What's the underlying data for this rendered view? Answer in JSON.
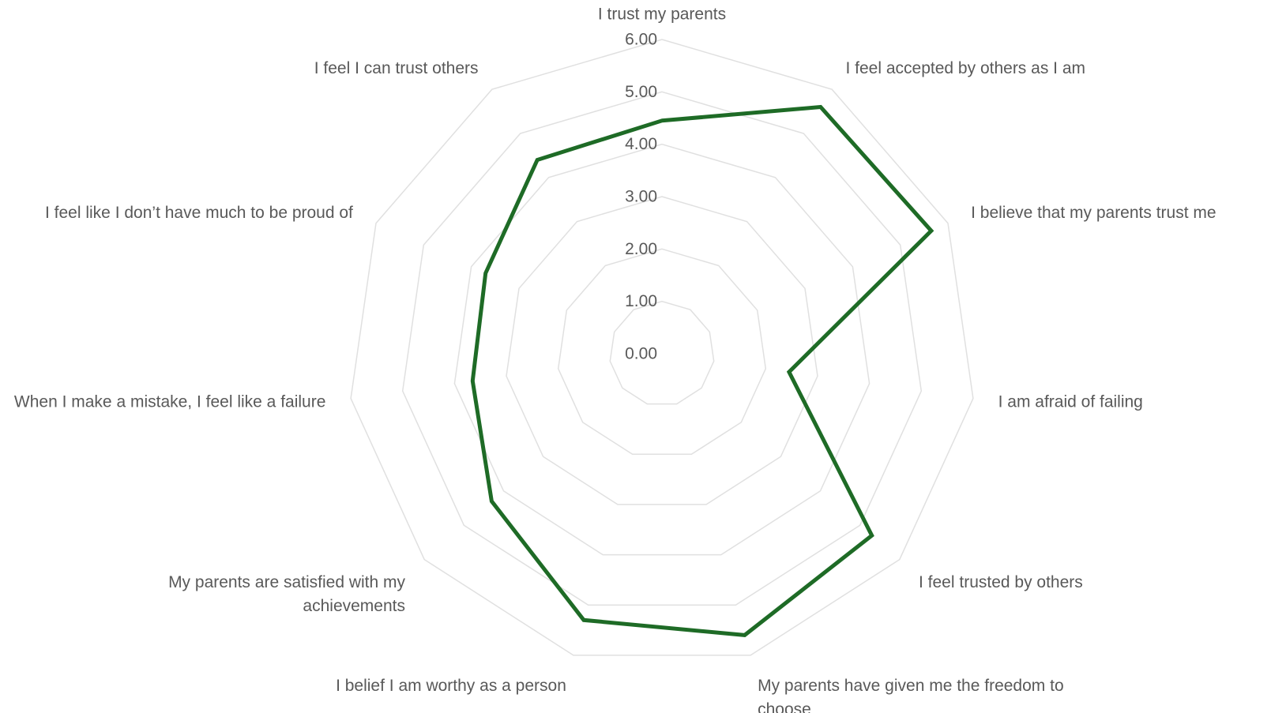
{
  "chart_data": {
    "type": "radar",
    "axes": [
      [
        "I trust my parents"
      ],
      [
        "I feel accepted by others as I am"
      ],
      [
        "I believe that my parents trust me"
      ],
      [
        "I am afraid of failing"
      ],
      [
        "I feel trusted by others"
      ],
      [
        "My parents have given me the freedom to",
        "choose"
      ],
      [
        "I belief I am worthy as a person"
      ],
      [
        "My parents are satisfied with my",
        "achievements"
      ],
      [
        "When I make a mistake, I feel like a failure"
      ],
      [
        "I feel like I don’t have much to be proud of"
      ],
      [
        "I feel I can trust others"
      ]
    ],
    "ticks": [
      "0.00",
      "1.00",
      "2.00",
      "3.00",
      "4.00",
      "5.00",
      "6.00"
    ],
    "rmin": 0,
    "rmax": 6,
    "grid": true,
    "series": [
      {
        "values": [
          4.45,
          5.6,
          5.65,
          2.45,
          5.3,
          5.6,
          5.3,
          4.3,
          3.65,
          3.7,
          4.4
        ],
        "color": "#1e6b26"
      }
    ]
  }
}
